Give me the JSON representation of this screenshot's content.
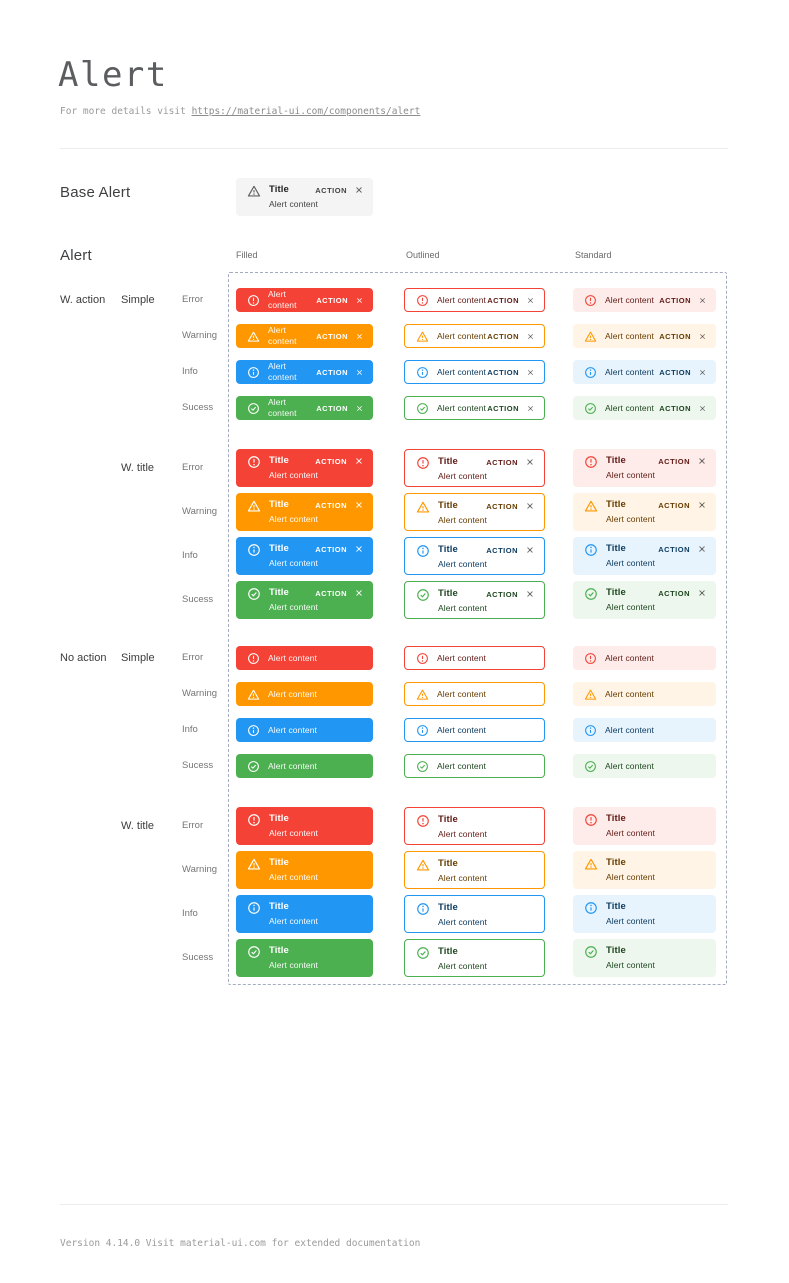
{
  "page": {
    "title": "Alert",
    "subtitle_prefix": "For more details visit ",
    "subtitle_link": "https://material-ui.com/components/alert",
    "footer": "Version 4.14.0  Visit material-ui.com for extended documentation"
  },
  "base_alert": {
    "heading": "Base Alert",
    "title": "Title",
    "content": "Alert content",
    "action": "ACTION",
    "bg": "#f4f4f4",
    "icon_color": "#616161"
  },
  "matrix": {
    "heading": "Alert",
    "columns": [
      {
        "label": "Filled",
        "variant": "filled"
      },
      {
        "label": "Outlined",
        "variant": "outlined"
      },
      {
        "label": "Standard",
        "variant": "standard"
      }
    ],
    "severities": [
      {
        "key": "error",
        "label": "Error",
        "main": "#f44336",
        "tint": "#fdecea",
        "dark": "#611a15"
      },
      {
        "key": "warning",
        "label": "Warning",
        "main": "#ff9800",
        "tint": "#fff4e5",
        "dark": "#663c00"
      },
      {
        "key": "info",
        "label": "Info",
        "main": "#2196f3",
        "tint": "#e8f4fd",
        "dark": "#0d3c61"
      },
      {
        "key": "success",
        "label": "Sucess",
        "main": "#4caf50",
        "tint": "#edf7ed",
        "dark": "#1e4620"
      }
    ],
    "sections": [
      {
        "label": "W. action",
        "with_action": true,
        "blocks": [
          {
            "label": "Simple",
            "with_title": false
          },
          {
            "label": "W. title",
            "with_title": true
          }
        ]
      },
      {
        "label": "No action",
        "with_action": false,
        "blocks": [
          {
            "label": "Simple",
            "with_title": false
          },
          {
            "label": "W. title",
            "with_title": true
          }
        ]
      }
    ],
    "alert_title": "Title",
    "alert_content": "Alert content",
    "action_label": "ACTION",
    "frame_color": "#a4abbe",
    "filled_text_color": "#ffffff"
  }
}
